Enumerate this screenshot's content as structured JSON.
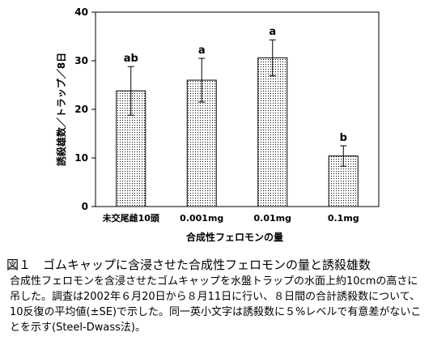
{
  "chart_data": {
    "type": "bar",
    "categories": [
      "未交尾雌10頭",
      "0.001mg",
      "0.01mg",
      "0.1mg"
    ],
    "values": [
      23.8,
      26.0,
      30.6,
      10.4
    ],
    "errors": [
      5.0,
      4.5,
      3.7,
      2.1
    ],
    "significance": [
      "ab",
      "a",
      "a",
      "b"
    ],
    "ylim": [
      0,
      40
    ],
    "yticks": [
      0,
      10,
      20,
      30,
      40
    ],
    "ylabel": "誘殺雄数／トラップ／8日",
    "xlabel": "合成性フェロモンの量",
    "bar_fill": "dotted",
    "grid": false
  },
  "caption": {
    "title": "図１　ゴムキャップに含浸させた合成性フェロモンの量と誘殺雄数",
    "body": "合成性フェロモンを含浸させたゴムキャップを水盤トラップの水面上約10cmの高さに吊した。調査は2002年６月20日から８月11日に行い、８日間の合計誘殺数について、10反復の平均値(±SE)で示した。同一英小文字は誘殺数に５%レベルで有意差がないことを示す(Steel-Dwass法)。"
  }
}
